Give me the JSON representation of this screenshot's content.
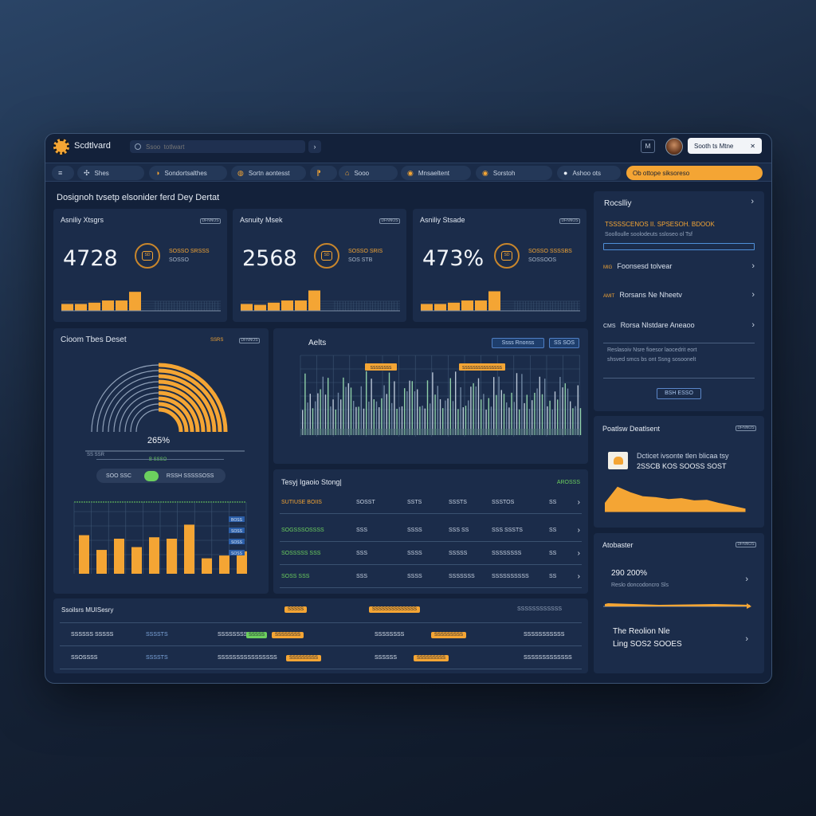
{
  "titlebar": {
    "app_name": "Scdtlvard",
    "search_placeholder": "Ssoo  totlwart",
    "profile_label": "Sooth ts Mtne",
    "profile_close": "✕",
    "nav_chevron": "›",
    "icon_button": "M"
  },
  "tabs": [
    {
      "icon": "≡",
      "label": ""
    },
    {
      "icon": "✣",
      "label": "Shes"
    },
    {
      "icon": "◑",
      "label": "Sondortsalthes"
    },
    {
      "icon": "◍",
      "label": "Sortn aontesst"
    },
    {
      "icon": "⁋",
      "label": ""
    },
    {
      "icon": "⌂",
      "label": "Sooo"
    },
    {
      "icon": "◉",
      "label": "Mnsaeltent"
    },
    {
      "icon": "◉",
      "label": "Sorstoh"
    },
    {
      "icon": "●",
      "label": "Ashoo ots"
    },
    {
      "icon": "",
      "label": "Ob ottope siksoreso"
    }
  ],
  "page_title": "Dosignoh tvsetp  elsonider  ferd Dey Dertat",
  "kpi_cards": [
    {
      "title": "Asniliy Xtsgrs",
      "chip": "DFNNOS",
      "value": "4728",
      "ring_label": "SD",
      "stat_top": "SOSSO SRSSS",
      "stat_bottom": "SOSSO"
    },
    {
      "title": "Asnuity Msek",
      "chip": "DFNNOS",
      "value": "2568",
      "ring_label": "SD",
      "stat_top": "SOSSO SRIS",
      "stat_bottom": "SOS STB"
    },
    {
      "title": "Asniliy Stsade",
      "chip": "DFNNOS",
      "value": "473%",
      "ring_label": "SD",
      "stat_top": "SOSSO SSSSBS",
      "stat_bottom": "SOSSOOS"
    }
  ],
  "sidebar_top": {
    "title": "Rocslliy",
    "highlight": "TSSSSCENOS  II. SPSESOH. BDOOK",
    "subtext": "Soolloulle soolodeuts ssloseo ol  Tsf",
    "rows": [
      {
        "tag": "MIG",
        "label": "Foonsesd  tolvear"
      },
      {
        "tag": "AMIT",
        "label": "Rorsans  Ne  Nheetv"
      },
      {
        "tag": "CMS",
        "label": "Rorsa Nlstdare  Aneaoo"
      }
    ],
    "note_line1": "Reslasoiv Nsre  fioesor laocedrit  eort",
    "note_line2": "shsved  smcs bs ont Ssng sosoonelt",
    "button": "BSH ESSO"
  },
  "gauge_panel": {
    "title": "Cioom Tbes Deset",
    "chip_orange": "SSRS",
    "chip_outline": "DFNNOS",
    "value": "265%",
    "left_label": "SS SSR",
    "right_label": "B SSSO",
    "toggle_left": "SOO SSC",
    "toggle_right": "RSSH SSSSSOSS"
  },
  "small_bar_chart": {
    "legend": [
      "BOSS",
      "SOSS",
      "SOSS",
      "SOSS"
    ]
  },
  "alerts_panel": {
    "title": "Aelts",
    "btn1": "Ssss  Rnonss",
    "btn2": "SS  SOS",
    "markers": [
      "SSSSSSSS",
      "SSSSSSSSSSSSSSS"
    ]
  },
  "ledger": {
    "title": "Tesyj  Igaoio  Stong|",
    "badge": "AROSSS",
    "rows": [
      {
        "c1": "SUTIUSE BOIIS",
        "c2": "SOSST",
        "c3": "SSTS",
        "c4": "SSSTS",
        "c5": "SSSTOS",
        "c6": "SS"
      },
      {
        "c1": "SOGSSSOSSSS",
        "c2": "SSS",
        "c3": "SSSS",
        "c4": "SSS SS",
        "c5": "SSS SSSTS",
        "c6": "SS"
      },
      {
        "c1": "SOSSSSS SSS",
        "c2": "SSS",
        "c3": "SSSS",
        "c4": "SSSSS",
        "c5": "SSSSSSSS",
        "c6": "SS"
      },
      {
        "c1": "SOSS SSS",
        "c2": "SSS",
        "c3": "SSSS",
        "c4": "SSSSSSS",
        "c5": "SSSSSSSSSS",
        "c6": "SS"
      }
    ]
  },
  "positions_panel": {
    "title": "Poatlsw  Deatlsent",
    "chip": "DFNNOS",
    "text_top": "Dcticet ivsonte  tlen blicaa  tsy",
    "text_bottom": "2SSCB  KOS  SOOSS  SOST"
  },
  "status_panel": {
    "title": "Atobaster",
    "chip": "DFNNOS",
    "value": "290  200%",
    "sub": "Reslo  doncodoncro  Sls",
    "row2_title": "The  Reolion Nle",
    "row2_value": "Ling  SOS2  SOOES"
  },
  "bottom_table": {
    "title": "Ssoilsrs  MUISesry",
    "header_pill": "SSSSS",
    "header_col3": "SSSSSSSSSSSSSS",
    "header_col4": "SSSSSSSSSSSS",
    "rows": [
      {
        "c1": "SSSSSS SSSSS",
        "c2": "SSSSTS",
        "c3": "SSSSSSSSSS",
        "c3_pill_g": "SSSSS",
        "c3_pill_o": "SSSSSSSS",
        "c4": "SSSSSSSS",
        "c4_pill": "SSSSSSSSS",
        "c5": "SSSSSSSSSSS"
      },
      {
        "c1": "SSOSSSS",
        "c2": "SSSSTS",
        "c3": "SSSSSSSSSSSSSSSS",
        "c3_pill_o": "SSSSSSSSS",
        "c4": "SSSSSS",
        "c4_pill": "SSSSSSSSS",
        "c5": "SSSSSSSSSSSSS"
      }
    ]
  },
  "colors": {
    "accent": "#f4a534",
    "positive": "#6ccf5e",
    "panel": "#1b2c4a",
    "background": "#13213a"
  },
  "charts": {
    "kpi_sparks": [
      [
        0.25,
        0.25,
        0.3,
        0.38,
        0.38,
        0.7
      ],
      [
        0.25,
        0.22,
        0.3,
        0.38,
        0.38,
        0.75
      ],
      [
        0.25,
        0.25,
        0.3,
        0.38,
        0.38,
        0.72
      ]
    ],
    "gauge_percent": 0.5,
    "small_bars": [
      0.55,
      0.34,
      0.5,
      0.38,
      0.52,
      0.5,
      0.7,
      0.22,
      0.26,
      0.32
    ],
    "wave": [
      0.3,
      0.9,
      0.7,
      0.55,
      0.52,
      0.45,
      0.48,
      0.4,
      0.42,
      0.3,
      0.2,
      0.1
    ]
  }
}
